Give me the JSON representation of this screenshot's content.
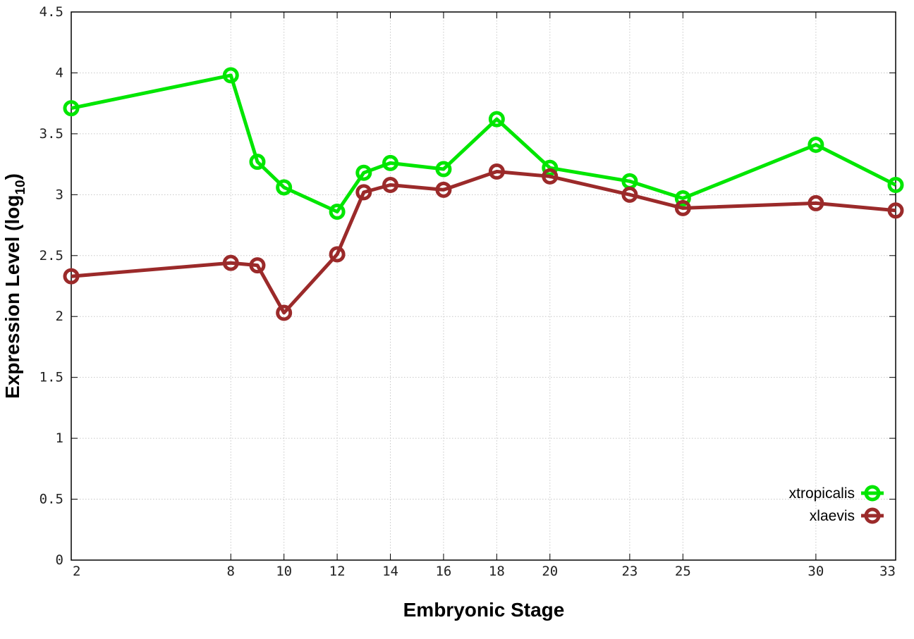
{
  "chart_data": {
    "type": "line",
    "xlabel": "Embryonic Stage",
    "ylabel": "Expression Level (log",
    "ylabel_subscript": "10",
    "ylabel_close": ")",
    "ylim": [
      0,
      4.5
    ],
    "y_ticks": [
      "0",
      "0.5",
      "1",
      "1.5",
      "2",
      "2.5",
      "3",
      "3.5",
      "4",
      "4.5"
    ],
    "x": [
      2,
      8,
      9,
      10,
      12,
      13,
      14,
      16,
      18,
      20,
      23,
      25,
      30,
      33
    ],
    "x_tick_labels": [
      "2",
      "8",
      "10",
      "12",
      "14",
      "16",
      "18",
      "20",
      "23",
      "25",
      "30",
      "33"
    ],
    "grid": true,
    "legend_position": "bottom-right",
    "series": [
      {
        "name": "xtropicalis",
        "color": "#00e600",
        "values": [
          3.71,
          3.98,
          3.27,
          3.06,
          2.86,
          3.18,
          3.26,
          3.21,
          3.62,
          3.22,
          3.11,
          2.97,
          3.41,
          3.08
        ]
      },
      {
        "name": "xlaevis",
        "color": "#9b2a2a",
        "values": [
          2.33,
          2.44,
          2.42,
          2.03,
          2.51,
          3.02,
          3.08,
          3.04,
          3.19,
          3.15,
          3.0,
          2.89,
          2.93,
          2.87
        ]
      }
    ]
  }
}
